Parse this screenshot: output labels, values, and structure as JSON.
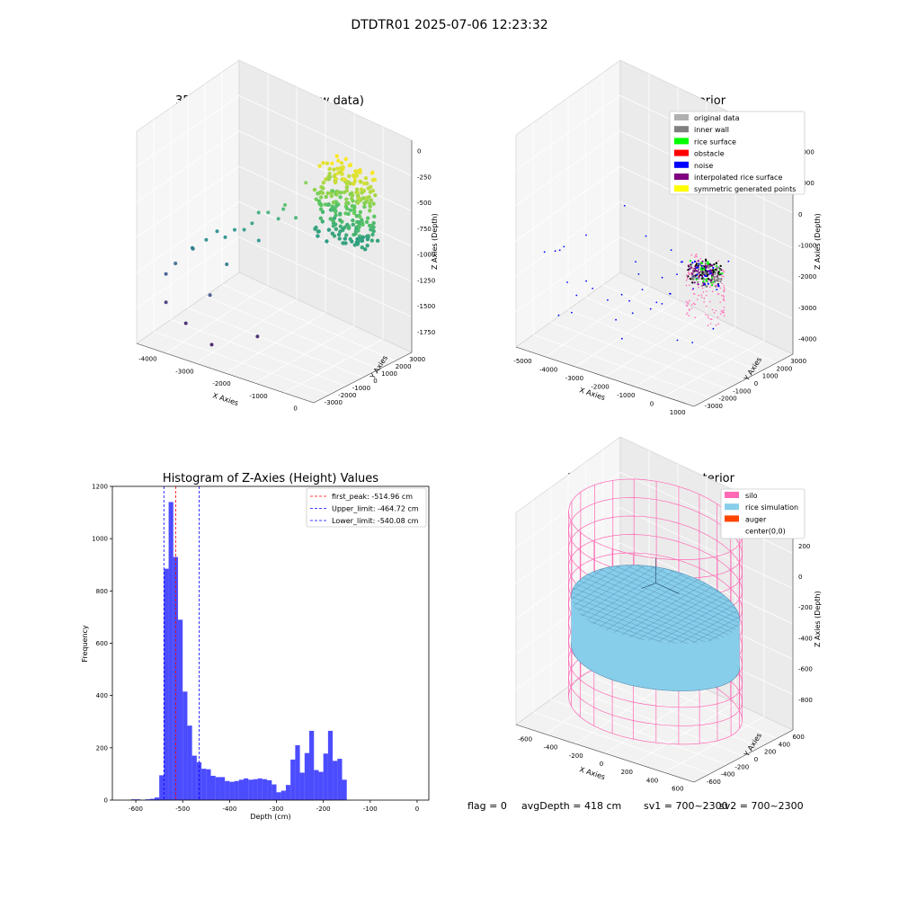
{
  "figure_title": "DTDTR01 2025-07-06 12:23:32",
  "footer": {
    "flag": "flag = 0",
    "avg_depth": "avgDepth = 418 cm",
    "sv1": "sv1 = 700~2300",
    "sv2": "sv2 = 700~2300"
  },
  "chart_data": [
    {
      "id": "raw",
      "type": "scatter",
      "projection": "3d",
      "title": "3D Plot of Silo Interior(row data)",
      "xlabel": "X Axies",
      "ylabel": "Y Axies",
      "zlabel": "Z Axies (Depth)",
      "x_ticks": [
        -4000,
        -3000,
        -2000,
        -1000,
        0
      ],
      "y_ticks": [
        -3000,
        -2000,
        -1000,
        0,
        1000,
        2000,
        3000
      ],
      "z_ticks": [
        -1750,
        -1500,
        -1250,
        -1000,
        -750,
        -500,
        -250,
        0
      ],
      "colormap": "viridis",
      "sparse_points": [
        [
          -4200,
          -2000,
          -1400
        ],
        [
          -4000,
          -2500,
          -1600
        ],
        [
          -3900,
          -2100,
          -1250
        ],
        [
          -3700,
          -1400,
          -1150
        ],
        [
          -3500,
          -2400,
          -1750
        ],
        [
          -3600,
          -1700,
          -1100
        ],
        [
          -3300,
          -1500,
          -1000
        ],
        [
          -3200,
          -1000,
          -950
        ],
        [
          -3000,
          -2000,
          -1450
        ],
        [
          -2900,
          -1200,
          -950
        ],
        [
          -2800,
          -800,
          -900
        ],
        [
          -2700,
          -1600,
          -1150
        ],
        [
          -2500,
          -900,
          -850
        ],
        [
          -2400,
          -600,
          -800
        ],
        [
          -2300,
          -400,
          -700
        ],
        [
          -2100,
          -900,
          -900
        ],
        [
          -2000,
          -500,
          -650
        ],
        [
          -1800,
          -300,
          -700
        ],
        [
          -1700,
          -200,
          -600
        ],
        [
          -1500,
          -600,
          -500
        ],
        [
          -1400,
          -100,
          -650
        ],
        [
          -1200,
          100,
          -300
        ],
        [
          -1900,
          -1500,
          -1750
        ],
        [
          -2600,
          -2900,
          -1800
        ]
      ],
      "cluster": {
        "x_range": [
          -800,
          600
        ],
        "y_range": [
          -600,
          800
        ],
        "z_range": [
          -700,
          0
        ]
      }
    },
    {
      "id": "classify",
      "type": "scatter",
      "projection": "3d",
      "title": "3D classify of Silo Interior",
      "xlabel": "X Axies",
      "ylabel": "Y Axies",
      "zlabel": "Z Axies (Depth)",
      "x_ticks": [
        -5000,
        -4000,
        -3000,
        -2000,
        -1000,
        0,
        1000
      ],
      "y_ticks": [
        -3000,
        -2000,
        -1000,
        0,
        1000,
        2000,
        3000
      ],
      "z_ticks": [
        -4000,
        -3000,
        -2000,
        -1000,
        0,
        1000,
        2000
      ],
      "legend_position": "top-right",
      "legend": [
        {
          "label": "original data",
          "color": "#b0b0b0"
        },
        {
          "label": "inner wall",
          "color": "#808080"
        },
        {
          "label": "rice surface",
          "color": "#00ff00"
        },
        {
          "label": "obstacle",
          "color": "#ff0000"
        },
        {
          "label": "noise",
          "color": "#0000ff"
        },
        {
          "label": "interpolated rice surface",
          "color": "#800080"
        },
        {
          "label": "symmetric generated points",
          "color": "#ffff00"
        }
      ]
    },
    {
      "id": "hist",
      "type": "bar",
      "title": "Histogram of Z-Axies (Height) Values",
      "xlabel": "Depth (cm)",
      "ylabel": "Frequency",
      "xlim": [
        -650,
        25
      ],
      "ylim": [
        0,
        1200
      ],
      "x_ticks": [
        -600,
        -500,
        -400,
        -300,
        -200,
        -100,
        0
      ],
      "y_ticks": [
        0,
        200,
        400,
        600,
        800,
        1000,
        1200
      ],
      "bar_color": "#0000ff",
      "bin_width": 10,
      "bin_starts": [
        -620,
        -610,
        -600,
        -590,
        -580,
        -570,
        -560,
        -550,
        -540,
        -530,
        -520,
        -510,
        -500,
        -490,
        -480,
        -470,
        -460,
        -450,
        -440,
        -430,
        -420,
        -410,
        -400,
        -390,
        -380,
        -370,
        -360,
        -350,
        -340,
        -330,
        -320,
        -310,
        -300,
        -290,
        -280,
        -270,
        -260,
        -250,
        -240,
        -230,
        -220,
        -210,
        -200,
        -190,
        -180,
        -170,
        -160,
        -150,
        -140,
        -130,
        -120,
        -110,
        -100,
        -90,
        -80,
        -70,
        -60,
        -50,
        -40,
        -30,
        -20,
        -10
      ],
      "values": [
        0,
        3,
        3,
        0,
        3,
        5,
        10,
        95,
        885,
        1140,
        930,
        690,
        415,
        285,
        170,
        145,
        120,
        118,
        93,
        88,
        88,
        73,
        70,
        73,
        78,
        83,
        78,
        80,
        83,
        80,
        76,
        60,
        30,
        36,
        58,
        155,
        210,
        105,
        180,
        265,
        115,
        108,
        178,
        265,
        150,
        158,
        78,
        0,
        0,
        0,
        0,
        0,
        0,
        0,
        0,
        0,
        0,
        0,
        0,
        0,
        0,
        0
      ],
      "lines": [
        {
          "label": "first_peak: -514.96 cm",
          "x": -514.96,
          "color": "#ff0000"
        },
        {
          "label": "Upper_limit: -464.72 cm",
          "x": -464.72,
          "color": "#0000ff"
        },
        {
          "label": "Lower_limit: -540.08 cm",
          "x": -540.08,
          "color": "#0000ff"
        }
      ],
      "legend_position": "top-right"
    },
    {
      "id": "sim",
      "type": "surface",
      "projection": "3d",
      "title": "3D simulation of Silo Interior",
      "xlabel": "X Axies",
      "ylabel": "Y Axies",
      "zlabel": "Z Axies (Depth)",
      "x_ticks": [
        -600,
        -400,
        -200,
        0,
        200,
        400,
        600
      ],
      "y_ticks": [
        -600,
        -400,
        -200,
        0,
        200,
        400,
        600
      ],
      "z_ticks": [
        -800,
        -600,
        -400,
        -200,
        0,
        200
      ],
      "silo_radius": 600,
      "silo_z_range": [
        -900,
        300
      ],
      "rice_surface_z": -418,
      "legend_position": "top-right",
      "legend": [
        {
          "label": "silo",
          "color": "#ff69b4"
        },
        {
          "label": "rice simulation",
          "color": "#87ceeb"
        },
        {
          "label": "auger",
          "color": "#ff4500"
        },
        {
          "label": "center(0,0)",
          "color": "#ffffff"
        }
      ]
    }
  ]
}
